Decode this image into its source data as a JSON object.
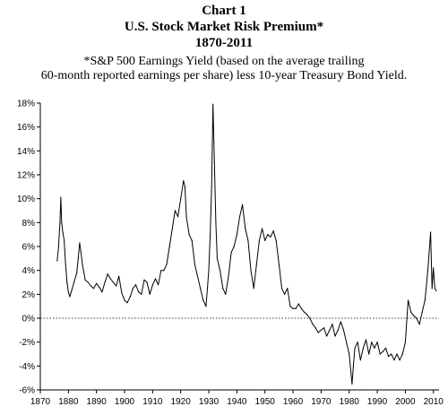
{
  "header": {
    "chart_number": "Chart 1",
    "title": "U.S. Stock Market Risk Premium*",
    "years": "1870-2011",
    "note_line1": "*S&P 500 Earnings Yield (based on the average trailing",
    "note_line2": "60-month reported earnings per share) less 10-year Treasury Bond Yield."
  },
  "chart_data": {
    "type": "line",
    "title": "U.S. Stock Market Risk Premium*",
    "subtitle": "1870-2011",
    "xlabel": "",
    "ylabel": "",
    "xlim": [
      1870,
      2012
    ],
    "ylim": [
      -6,
      18
    ],
    "x_ticks": [
      1870,
      1880,
      1890,
      1900,
      1910,
      1920,
      1930,
      1940,
      1950,
      1960,
      1970,
      1980,
      1990,
      2000,
      2010
    ],
    "y_ticks": [
      -6,
      -4,
      -2,
      0,
      2,
      4,
      6,
      8,
      10,
      12,
      14,
      16,
      18
    ],
    "y_tick_labels": [
      "-6%",
      "-4%",
      "-2%",
      "0%",
      "2%",
      "4%",
      "6%",
      "8%",
      "10%",
      "12%",
      "14%",
      "16%",
      "18%"
    ],
    "reference_line": {
      "y": 0,
      "style": "dotted"
    },
    "grid": false,
    "series": [
      {
        "line_color": "#000000",
        "points": [
          [
            1876.0,
            4.8
          ],
          [
            1876.5,
            6.0
          ],
          [
            1877.0,
            8.0
          ],
          [
            1877.3,
            10.1
          ],
          [
            1877.6,
            8.0
          ],
          [
            1878.0,
            7.2
          ],
          [
            1878.5,
            6.5
          ],
          [
            1879.0,
            4.5
          ],
          [
            1879.5,
            3.0
          ],
          [
            1880.0,
            2.2
          ],
          [
            1880.5,
            1.8
          ],
          [
            1881.0,
            2.2
          ],
          [
            1882.0,
            3.0
          ],
          [
            1883.0,
            3.8
          ],
          [
            1883.5,
            5.0
          ],
          [
            1884.0,
            6.3
          ],
          [
            1884.5,
            5.5
          ],
          [
            1885.0,
            4.5
          ],
          [
            1886.0,
            3.2
          ],
          [
            1887.0,
            3.0
          ],
          [
            1888.0,
            2.7
          ],
          [
            1889.0,
            2.5
          ],
          [
            1890.0,
            2.9
          ],
          [
            1891.0,
            2.6
          ],
          [
            1892.0,
            2.2
          ],
          [
            1893.0,
            3.0
          ],
          [
            1894.0,
            3.7
          ],
          [
            1895.0,
            3.3
          ],
          [
            1896.0,
            3.0
          ],
          [
            1897.0,
            2.7
          ],
          [
            1898.0,
            3.5
          ],
          [
            1899.0,
            2.1
          ],
          [
            1900.0,
            1.5
          ],
          [
            1901.0,
            1.3
          ],
          [
            1902.0,
            1.8
          ],
          [
            1903.0,
            2.5
          ],
          [
            1904.0,
            2.8
          ],
          [
            1905.0,
            2.2
          ],
          [
            1906.0,
            2.0
          ],
          [
            1907.0,
            3.2
          ],
          [
            1908.0,
            3.0
          ],
          [
            1909.0,
            2.0
          ],
          [
            1910.0,
            2.8
          ],
          [
            1911.0,
            3.3
          ],
          [
            1912.0,
            2.8
          ],
          [
            1913.0,
            4.0
          ],
          [
            1914.0,
            4.0
          ],
          [
            1915.0,
            4.5
          ],
          [
            1916.0,
            6.0
          ],
          [
            1917.0,
            7.5
          ],
          [
            1918.0,
            9.0
          ],
          [
            1919.0,
            8.5
          ],
          [
            1920.0,
            10.0
          ],
          [
            1921.0,
            11.5
          ],
          [
            1921.5,
            11.0
          ],
          [
            1922.0,
            8.5
          ],
          [
            1923.0,
            7.0
          ],
          [
            1924.0,
            6.5
          ],
          [
            1925.0,
            4.5
          ],
          [
            1926.0,
            3.5
          ],
          [
            1927.0,
            2.5
          ],
          [
            1928.0,
            1.5
          ],
          [
            1929.0,
            1.0
          ],
          [
            1929.5,
            2.5
          ],
          [
            1930.0,
            4.0
          ],
          [
            1930.5,
            7.0
          ],
          [
            1931.0,
            11.0
          ],
          [
            1931.5,
            17.9
          ],
          [
            1932.0,
            13.0
          ],
          [
            1932.5,
            8.0
          ],
          [
            1933.0,
            5.0
          ],
          [
            1934.0,
            4.0
          ],
          [
            1935.0,
            2.5
          ],
          [
            1936.0,
            2.0
          ],
          [
            1937.0,
            3.5
          ],
          [
            1938.0,
            5.5
          ],
          [
            1939.0,
            6.0
          ],
          [
            1940.0,
            7.0
          ],
          [
            1941.0,
            8.5
          ],
          [
            1942.0,
            9.5
          ],
          [
            1943.0,
            7.5
          ],
          [
            1944.0,
            6.5
          ],
          [
            1945.0,
            4.0
          ],
          [
            1946.0,
            2.5
          ],
          [
            1947.0,
            4.5
          ],
          [
            1948.0,
            6.5
          ],
          [
            1949.0,
            7.5
          ],
          [
            1950.0,
            6.5
          ],
          [
            1951.0,
            7.0
          ],
          [
            1952.0,
            6.8
          ],
          [
            1953.0,
            7.3
          ],
          [
            1954.0,
            6.5
          ],
          [
            1955.0,
            4.5
          ],
          [
            1956.0,
            2.5
          ],
          [
            1957.0,
            2.0
          ],
          [
            1958.0,
            2.5
          ],
          [
            1959.0,
            1.0
          ],
          [
            1960.0,
            0.8
          ],
          [
            1961.0,
            0.8
          ],
          [
            1962.0,
            1.2
          ],
          [
            1963.0,
            0.8
          ],
          [
            1964.0,
            0.5
          ],
          [
            1965.0,
            0.3
          ],
          [
            1966.0,
            0.0
          ],
          [
            1967.0,
            -0.5
          ],
          [
            1968.0,
            -0.8
          ],
          [
            1969.0,
            -1.2
          ],
          [
            1970.0,
            -1.0
          ],
          [
            1971.0,
            -0.8
          ],
          [
            1972.0,
            -1.5
          ],
          [
            1973.0,
            -1.0
          ],
          [
            1974.0,
            -0.5
          ],
          [
            1975.0,
            -1.5
          ],
          [
            1976.0,
            -1.0
          ],
          [
            1977.0,
            -0.3
          ],
          [
            1978.0,
            -1.0
          ],
          [
            1979.0,
            -2.0
          ],
          [
            1980.0,
            -3.0
          ],
          [
            1981.0,
            -5.5
          ],
          [
            1981.5,
            -4.0
          ],
          [
            1982.0,
            -2.5
          ],
          [
            1983.0,
            -2.0
          ],
          [
            1984.0,
            -3.5
          ],
          [
            1985.0,
            -2.5
          ],
          [
            1986.0,
            -1.8
          ],
          [
            1987.0,
            -3.0
          ],
          [
            1988.0,
            -2.0
          ],
          [
            1989.0,
            -2.5
          ],
          [
            1990.0,
            -2.0
          ],
          [
            1991.0,
            -3.0
          ],
          [
            1992.0,
            -2.8
          ],
          [
            1993.0,
            -2.5
          ],
          [
            1994.0,
            -3.2
          ],
          [
            1995.0,
            -3.0
          ],
          [
            1996.0,
            -3.5
          ],
          [
            1997.0,
            -3.0
          ],
          [
            1998.0,
            -3.5
          ],
          [
            1999.0,
            -3.0
          ],
          [
            2000.0,
            -2.0
          ],
          [
            2001.0,
            1.5
          ],
          [
            2002.0,
            0.5
          ],
          [
            2003.0,
            0.2
          ],
          [
            2004.0,
            0.0
          ],
          [
            2005.0,
            -0.5
          ],
          [
            2006.0,
            0.5
          ],
          [
            2007.0,
            1.5
          ],
          [
            2008.0,
            4.0
          ],
          [
            2009.0,
            7.2
          ],
          [
            2009.5,
            2.5
          ],
          [
            2010.0,
            4.2
          ],
          [
            2010.5,
            2.5
          ],
          [
            2011.0,
            2.3
          ]
        ]
      }
    ]
  }
}
